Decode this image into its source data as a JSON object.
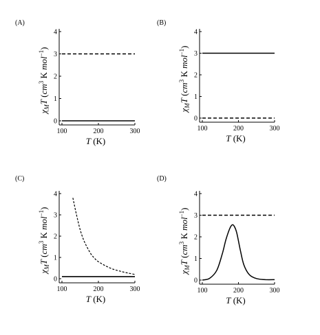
{
  "chart_data": [
    {
      "panel": "(A)",
      "type": "line",
      "xlabel": "T (K)",
      "ylabel": "χMT (cm3 K mol−1)",
      "xlim": [
        100,
        300
      ],
      "ylim": [
        0,
        4
      ],
      "x_ticks": [
        100,
        200,
        300
      ],
      "y_ticks": [
        0,
        1,
        2,
        3,
        4
      ],
      "series": [
        {
          "style": "dashed",
          "color": "#000000",
          "x": [
            100,
            300
          ],
          "y": [
            3,
            3
          ]
        },
        {
          "style": "solid",
          "color": "#000000",
          "x": [
            100,
            300
          ],
          "y": [
            0,
            0
          ]
        }
      ]
    },
    {
      "panel": "(B)",
      "type": "line",
      "xlabel": "T (K)",
      "ylabel": "χMT (cm3 K mol−1)",
      "xlim": [
        100,
        300
      ],
      "ylim": [
        0,
        4
      ],
      "x_ticks": [
        100,
        200,
        300
      ],
      "y_ticks": [
        0,
        1,
        2,
        3,
        4
      ],
      "series": [
        {
          "style": "solid",
          "color": "#000000",
          "x": [
            100,
            300
          ],
          "y": [
            3,
            3
          ]
        },
        {
          "style": "dashed",
          "color": "#000000",
          "x": [
            100,
            300
          ],
          "y": [
            0,
            0
          ]
        }
      ]
    },
    {
      "panel": "(C)",
      "type": "line",
      "xlabel": "T (K)",
      "ylabel": "χMT (cm3 K mol−1)",
      "xlim": [
        100,
        300
      ],
      "ylim": [
        0,
        4
      ],
      "x_ticks": [
        100,
        200,
        300
      ],
      "y_ticks": [
        0,
        1,
        2,
        3,
        4
      ],
      "series": [
        {
          "style": "dashed",
          "color": "#000000",
          "x": [
            130,
            140,
            150,
            160,
            170,
            180,
            190,
            200,
            220,
            240,
            260,
            280,
            300
          ],
          "y": [
            3.8,
            3.0,
            2.3,
            1.8,
            1.45,
            1.15,
            0.95,
            0.8,
            0.6,
            0.45,
            0.35,
            0.27,
            0.2
          ]
        },
        {
          "style": "solid",
          "color": "#000000",
          "x": [
            100,
            300
          ],
          "y": [
            0.1,
            0.1
          ]
        }
      ]
    },
    {
      "panel": "(D)",
      "type": "line",
      "xlabel": "T (K)",
      "ylabel": "χMT (cm3 K mol−1)",
      "xlim": [
        100,
        300
      ],
      "ylim": [
        0,
        4
      ],
      "x_ticks": [
        100,
        200,
        300
      ],
      "y_ticks": [
        0,
        1,
        2,
        3,
        4
      ],
      "series": [
        {
          "style": "dashed",
          "color": "#000000",
          "x": [
            100,
            300
          ],
          "y": [
            3,
            3
          ]
        },
        {
          "style": "solid",
          "color": "#000000",
          "x": [
            100,
            120,
            140,
            155,
            165,
            175,
            182,
            188,
            195,
            205,
            215,
            230,
            250,
            275,
            300
          ],
          "y": [
            0.0,
            0.08,
            0.45,
            1.2,
            1.85,
            2.35,
            2.55,
            2.5,
            2.2,
            1.4,
            0.7,
            0.25,
            0.07,
            0.02,
            0.02
          ]
        }
      ]
    }
  ]
}
